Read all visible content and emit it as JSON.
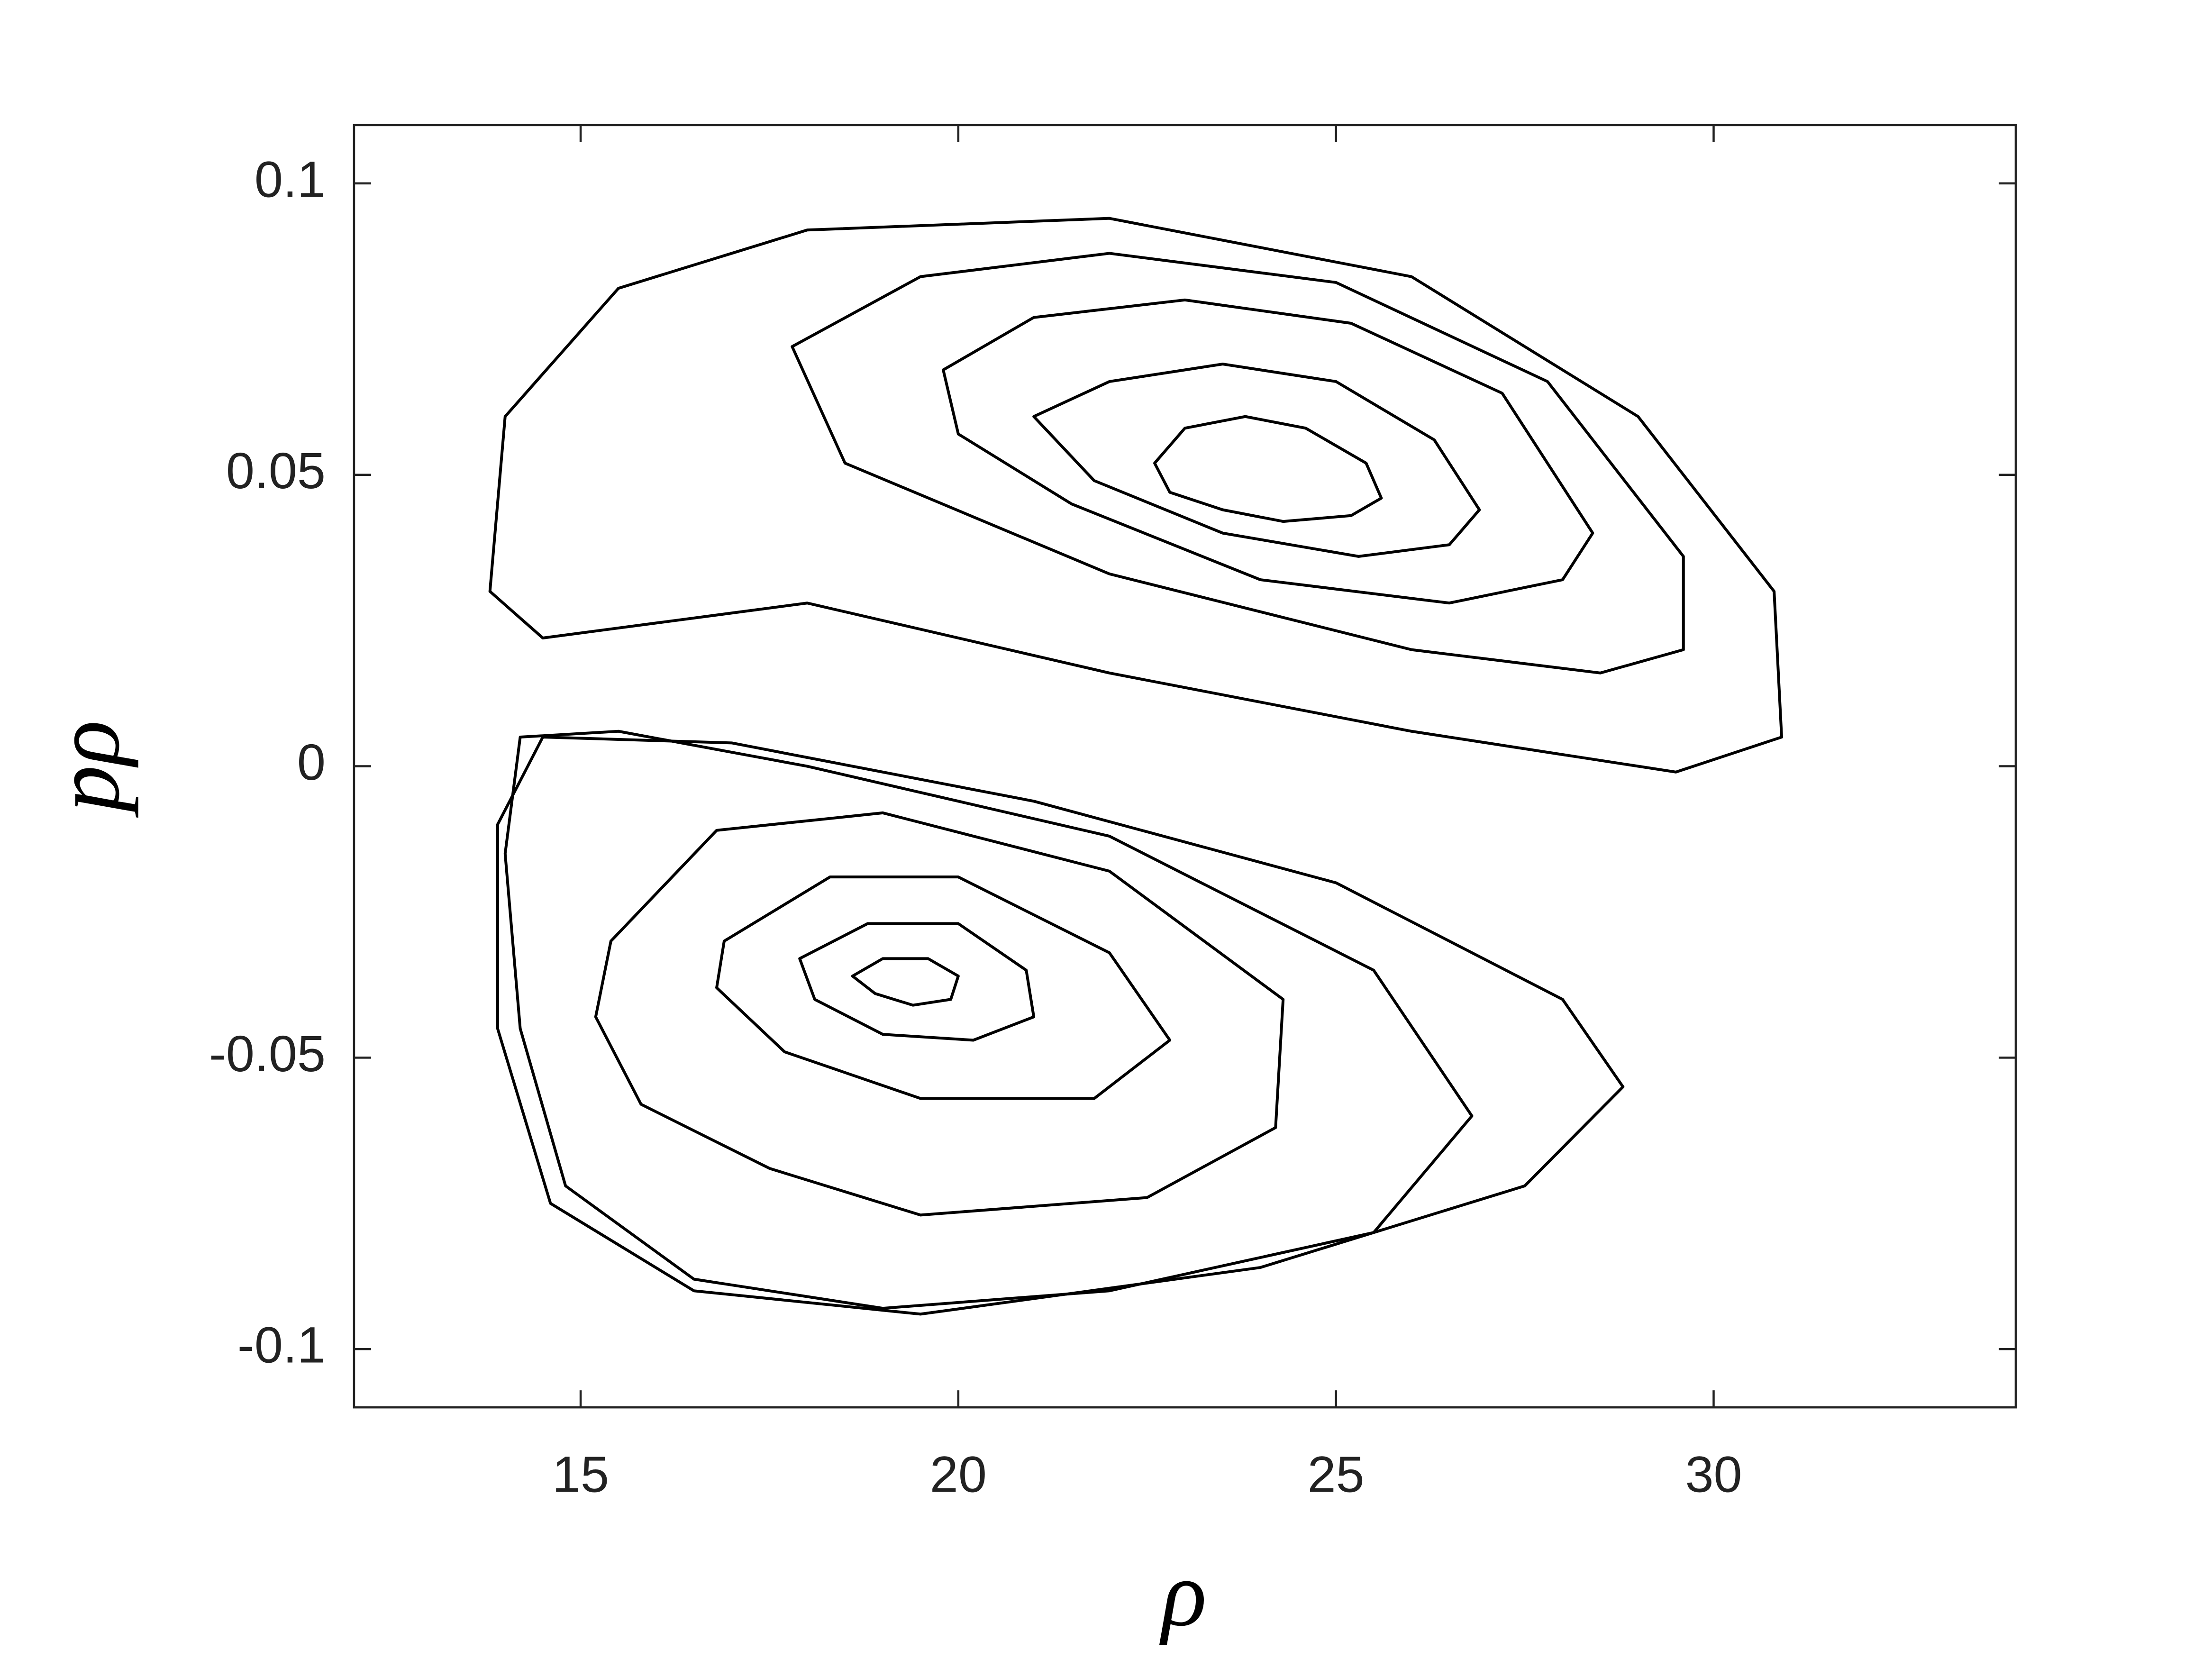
{
  "chart_data": {
    "type": "line",
    "xlabel": "ρ",
    "ylabel": "pρ",
    "xlim": [
      12,
      34
    ],
    "ylim": [
      -0.11,
      0.11
    ],
    "xticks": [
      15,
      20,
      25,
      30
    ],
    "yticks": [
      -0.1,
      -0.05,
      0,
      0.05,
      0.1
    ],
    "grid": false,
    "series": [
      {
        "color": "#000000",
        "x": [
          22.6,
          23.0,
          23.8,
          24.6,
          25.4,
          25.6,
          25.2,
          24.3,
          23.5,
          22.8
        ],
        "values": [
          0.052,
          0.058,
          0.06,
          0.058,
          0.052,
          0.046,
          0.043,
          0.042,
          0.044,
          0.047
        ]
      },
      {
        "color": "#000000",
        "x": [
          21.0,
          22.0,
          23.5,
          25.0,
          26.3,
          26.9,
          26.5,
          25.3,
          23.5,
          21.8
        ],
        "values": [
          0.06,
          0.066,
          0.069,
          0.066,
          0.056,
          0.044,
          0.038,
          0.036,
          0.04,
          0.049
        ]
      },
      {
        "color": "#000000",
        "x": [
          19.8,
          21.0,
          23.0,
          25.2,
          27.2,
          28.4,
          28.0,
          26.5,
          24.0,
          21.5,
          20.0
        ],
        "values": [
          0.068,
          0.077,
          0.08,
          0.076,
          0.064,
          0.04,
          0.032,
          0.028,
          0.032,
          0.045,
          0.057
        ]
      },
      {
        "color": "#000000",
        "x": [
          17.8,
          19.5,
          22.0,
          25.0,
          27.8,
          29.6,
          29.6,
          28.5,
          26.0,
          22.0,
          18.5
        ],
        "values": [
          0.072,
          0.084,
          0.088,
          0.083,
          0.066,
          0.036,
          0.02,
          0.016,
          0.02,
          0.033,
          0.052
        ]
      },
      {
        "color": "#000000",
        "x": [
          13.8,
          14.0,
          15.5,
          18.0,
          22.0,
          26.0,
          29.0,
          30.8,
          30.9,
          29.5,
          26.0,
          22.0,
          18.0,
          14.5
        ],
        "values": [
          0.03,
          0.06,
          0.082,
          0.092,
          0.094,
          0.084,
          0.06,
          0.03,
          0.005,
          -0.001,
          0.006,
          0.016,
          0.028,
          0.022
        ]
      },
      {
        "color": "#000000",
        "x": [
          18.6,
          19.0,
          19.6,
          20.0,
          19.9,
          19.4,
          18.9
        ],
        "values": [
          -0.036,
          -0.033,
          -0.033,
          -0.036,
          -0.04,
          -0.041,
          -0.039
        ]
      },
      {
        "color": "#000000",
        "x": [
          17.9,
          18.8,
          20.0,
          20.9,
          21.0,
          20.2,
          19.0,
          18.1
        ],
        "values": [
          -0.033,
          -0.027,
          -0.027,
          -0.035,
          -0.043,
          -0.047,
          -0.046,
          -0.04
        ]
      },
      {
        "color": "#000000",
        "x": [
          16.9,
          18.3,
          20.0,
          22.0,
          22.8,
          21.8,
          19.5,
          17.7,
          16.8
        ],
        "values": [
          -0.03,
          -0.019,
          -0.019,
          -0.032,
          -0.047,
          -0.057,
          -0.057,
          -0.049,
          -0.038
        ]
      },
      {
        "color": "#000000",
        "x": [
          15.4,
          16.8,
          19.0,
          22.0,
          24.3,
          24.2,
          22.5,
          19.5,
          17.5,
          15.8,
          15.2
        ],
        "values": [
          -0.03,
          -0.011,
          -0.008,
          -0.018,
          -0.04,
          -0.062,
          -0.074,
          -0.077,
          -0.069,
          -0.058,
          -0.043
        ]
      },
      {
        "color": "#000000",
        "x": [
          14.0,
          14.2,
          15.5,
          18.0,
          22.0,
          25.5,
          26.8,
          25.5,
          22.0,
          19.0,
          16.5,
          14.8,
          14.2
        ],
        "values": [
          -0.015,
          0.005,
          0.006,
          0.0,
          -0.012,
          -0.035,
          -0.06,
          -0.08,
          -0.09,
          -0.093,
          -0.088,
          -0.072,
          -0.045
        ]
      },
      {
        "color": "#000000",
        "x": [
          13.9,
          14.5,
          17.0,
          21.0,
          25.0,
          28.0,
          28.8,
          27.5,
          24.0,
          19.5,
          16.5,
          14.6,
          13.9
        ],
        "values": [
          -0.01,
          0.005,
          0.004,
          -0.006,
          -0.02,
          -0.04,
          -0.055,
          -0.072,
          -0.086,
          -0.094,
          -0.09,
          -0.075,
          -0.045
        ]
      }
    ]
  }
}
